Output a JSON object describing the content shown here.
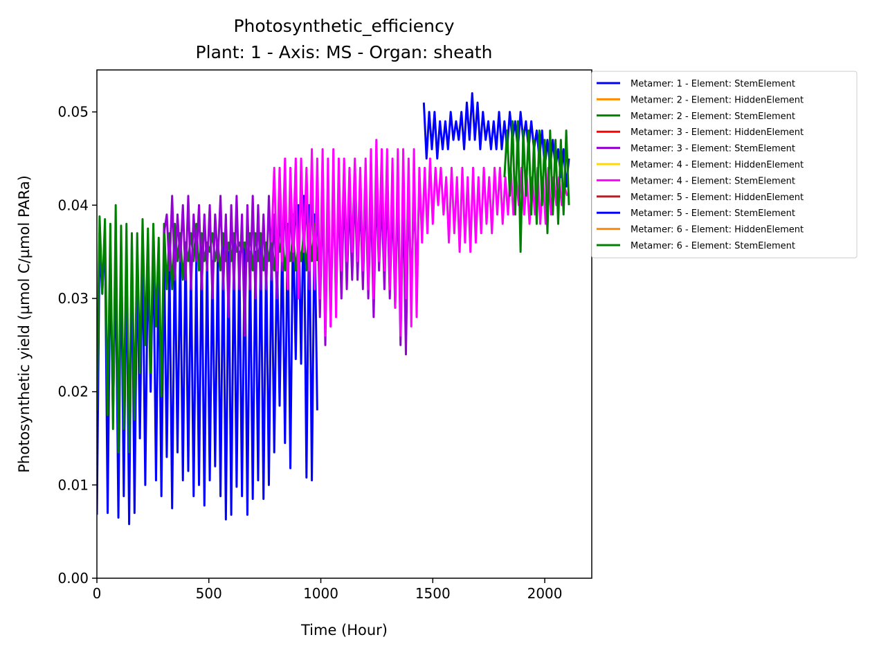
{
  "chart_data": {
    "type": "line",
    "title": "Photosynthetic_efficiency",
    "subtitle": "Plant: 1 - Axis: MS - Organ: sheath",
    "xlabel": "Time (Hour)",
    "ylabel": "Photosynthetic yield (µmol C/µmol PARa)",
    "xlim": [
      0,
      2210
    ],
    "ylim": [
      0,
      0.0545
    ],
    "xticks": [
      0,
      500,
      1000,
      1500,
      2000
    ],
    "xtick_labels": [
      "0",
      "500",
      "1000",
      "1500",
      "2000"
    ],
    "yticks": [
      0,
      0.01,
      0.02,
      0.03,
      0.04,
      0.05
    ],
    "ytick_labels": [
      "0.00",
      "0.01",
      "0.02",
      "0.03",
      "0.04",
      "0.05"
    ],
    "grid": false,
    "legend_position": "outside-right-top",
    "series": [
      {
        "name": "Metamer: 1 - Element: StemElement",
        "color": "#0000ff",
        "x": [
          0,
          12,
          24,
          36,
          48,
          60,
          72,
          84,
          96,
          108,
          120,
          132,
          144,
          156,
          168,
          180,
          192,
          204,
          216,
          228,
          240,
          252,
          264,
          276,
          288,
          300,
          312,
          324,
          336,
          348,
          360,
          372,
          384,
          396,
          408,
          420,
          432,
          444,
          456,
          468,
          480,
          492,
          504,
          516,
          528,
          540,
          552,
          564,
          576,
          588,
          600,
          612,
          624,
          636,
          648,
          660,
          672,
          684,
          696,
          708,
          720,
          732,
          744,
          756,
          768,
          780,
          792,
          804,
          816,
          828,
          840,
          852,
          864,
          876,
          888,
          900,
          912,
          924,
          936,
          948,
          960,
          972,
          984
        ],
        "y": [
          0.0068,
          0.036,
          0.0305,
          0.037,
          0.007,
          0.035,
          0.017,
          0.034,
          0.0065,
          0.036,
          0.0088,
          0.035,
          0.0058,
          0.036,
          0.007,
          0.035,
          0.015,
          0.036,
          0.01,
          0.035,
          0.02,
          0.036,
          0.0105,
          0.035,
          0.0088,
          0.035,
          0.013,
          0.034,
          0.0075,
          0.036,
          0.0135,
          0.035,
          0.0105,
          0.036,
          0.0115,
          0.034,
          0.0088,
          0.034,
          0.01,
          0.036,
          0.0078,
          0.035,
          0.0105,
          0.034,
          0.012,
          0.035,
          0.0088,
          0.036,
          0.0063,
          0.035,
          0.0068,
          0.036,
          0.0098,
          0.035,
          0.0088,
          0.036,
          0.0068,
          0.035,
          0.0085,
          0.035,
          0.0105,
          0.036,
          0.0085,
          0.035,
          0.01,
          0.036,
          0.0135,
          0.035,
          0.0185,
          0.037,
          0.0145,
          0.038,
          0.0118,
          0.039,
          0.0235,
          0.04,
          0.023,
          0.041,
          0.0108,
          0.04,
          0.0105,
          0.039,
          0.018
        ]
      },
      {
        "name": "Metamer: 2 - Element: HiddenElement",
        "color": "#ff8c00",
        "x": [],
        "y": []
      },
      {
        "name": "Metamer: 2 - Element: StemElement",
        "color": "#008000",
        "x": [
          0,
          12,
          24,
          36,
          48,
          60,
          72,
          84,
          96,
          108,
          120,
          132,
          144,
          156,
          168,
          180,
          192,
          204,
          216,
          228,
          240,
          252,
          264,
          276,
          288,
          300,
          312,
          324,
          336,
          348,
          360,
          372,
          384,
          396,
          408,
          420,
          432,
          444,
          456,
          468,
          480,
          492,
          504,
          516,
          528,
          540,
          552,
          564,
          576,
          588,
          600,
          612,
          624,
          636,
          648,
          660,
          672,
          684,
          696,
          708,
          720,
          732,
          744,
          756,
          768,
          780,
          792,
          804,
          816,
          828,
          840,
          852,
          864,
          876,
          888,
          900,
          912,
          924,
          936,
          948,
          960,
          972,
          984
        ],
        "y": [
          0.018,
          0.0388,
          0.0305,
          0.0385,
          0.0175,
          0.038,
          0.016,
          0.04,
          0.0135,
          0.0378,
          0.016,
          0.038,
          0.0135,
          0.037,
          0.017,
          0.037,
          0.022,
          0.0385,
          0.025,
          0.0375,
          0.022,
          0.038,
          0.027,
          0.0365,
          0.0195,
          0.038,
          0.031,
          0.037,
          0.031,
          0.038,
          0.034,
          0.037,
          0.032,
          0.036,
          0.034,
          0.037,
          0.034,
          0.038,
          0.033,
          0.037,
          0.034,
          0.036,
          0.035,
          0.037,
          0.034,
          0.036,
          0.033,
          0.037,
          0.034,
          0.036,
          0.034,
          0.037,
          0.035,
          0.036,
          0.035,
          0.036,
          0.034,
          0.037,
          0.033,
          0.037,
          0.034,
          0.037,
          0.033,
          0.036,
          0.034,
          0.037,
          0.033,
          0.036,
          0.035,
          0.037,
          0.033,
          0.036,
          0.034,
          0.037,
          0.033,
          0.036,
          0.034,
          0.037,
          0.033,
          0.038,
          0.034,
          0.038,
          0.034
        ]
      },
      {
        "name": "Metamer: 3 - Element: HiddenElement",
        "color": "#ff0000",
        "x": [],
        "y": []
      },
      {
        "name": "Metamer: 3 - Element: StemElement",
        "color": "#9400d3",
        "x": [
          300,
          312,
          324,
          336,
          348,
          360,
          372,
          384,
          396,
          408,
          420,
          432,
          444,
          456,
          468,
          480,
          492,
          504,
          516,
          528,
          540,
          552,
          564,
          576,
          588,
          600,
          612,
          624,
          636,
          648,
          660,
          672,
          684,
          696,
          708,
          720,
          732,
          744,
          756,
          768,
          780,
          792,
          804,
          816,
          828,
          840,
          852,
          864,
          876,
          888,
          900,
          912,
          924,
          936,
          948,
          960,
          972,
          984,
          996,
          1008,
          1020,
          1032,
          1044,
          1056,
          1068,
          1080,
          1092,
          1104,
          1116,
          1128,
          1140,
          1152,
          1164,
          1176,
          1188,
          1200,
          1212,
          1224,
          1236,
          1248,
          1260,
          1272,
          1284,
          1296,
          1308,
          1320,
          1332,
          1344,
          1356,
          1368,
          1380,
          1392,
          1404,
          1416,
          1428,
          1440
        ],
        "y": [
          0.037,
          0.039,
          0.033,
          0.041,
          0.032,
          0.039,
          0.034,
          0.04,
          0.032,
          0.041,
          0.031,
          0.039,
          0.034,
          0.04,
          0.031,
          0.039,
          0.033,
          0.04,
          0.03,
          0.039,
          0.034,
          0.041,
          0.031,
          0.039,
          0.028,
          0.04,
          0.031,
          0.041,
          0.031,
          0.039,
          0.026,
          0.04,
          0.031,
          0.041,
          0.03,
          0.04,
          0.031,
          0.039,
          0.031,
          0.041,
          0.032,
          0.039,
          0.03,
          0.04,
          0.033,
          0.041,
          0.031,
          0.04,
          0.034,
          0.04,
          0.035,
          0.042,
          0.035,
          0.041,
          0.031,
          0.042,
          0.032,
          0.041,
          0.028,
          0.042,
          0.025,
          0.041,
          0.027,
          0.042,
          0.03,
          0.041,
          0.03,
          0.042,
          0.031,
          0.041,
          0.032,
          0.042,
          0.032,
          0.041,
          0.031,
          0.042,
          0.03,
          0.041,
          0.028,
          0.042,
          0.033,
          0.041,
          0.031,
          0.042,
          0.03,
          0.041,
          0.029,
          0.042,
          0.025,
          0.041,
          0.024,
          0.042,
          0.031,
          0.041,
          0.032,
          0.042
        ]
      },
      {
        "name": "Metamer: 4 - Element: HiddenElement",
        "color": "#ffd700",
        "x": [],
        "y": []
      },
      {
        "name": "Metamer: 4 - Element: StemElement",
        "color": "#ff00ff",
        "x": [
          780,
          792,
          804,
          816,
          828,
          840,
          852,
          864,
          876,
          888,
          900,
          912,
          924,
          936,
          948,
          960,
          972,
          984,
          996,
          1008,
          1020,
          1032,
          1044,
          1056,
          1068,
          1080,
          1092,
          1104,
          1116,
          1128,
          1140,
          1152,
          1164,
          1176,
          1188,
          1200,
          1212,
          1224,
          1236,
          1248,
          1260,
          1272,
          1284,
          1296,
          1308,
          1320,
          1332,
          1344,
          1356,
          1368,
          1380,
          1392,
          1404,
          1416,
          1428,
          1440,
          1452,
          1464,
          1476,
          1488,
          1500,
          1512,
          1524,
          1536,
          1548,
          1560,
          1572,
          1584,
          1596,
          1608,
          1620,
          1632,
          1644,
          1656,
          1668,
          1680,
          1692,
          1704,
          1716,
          1728,
          1740,
          1752,
          1764,
          1776,
          1788,
          1800,
          1812,
          1824,
          1836,
          1848,
          1860,
          1872,
          1884,
          1896,
          1908,
          1920,
          1932,
          1944,
          1956,
          1968,
          1980,
          1992,
          2004,
          2016,
          2028,
          2040,
          2052,
          2064,
          2076,
          2088,
          2100
        ],
        "y": [
          0.036,
          0.044,
          0.033,
          0.044,
          0.034,
          0.045,
          0.031,
          0.044,
          0.035,
          0.045,
          0.03,
          0.045,
          0.035,
          0.044,
          0.033,
          0.046,
          0.031,
          0.045,
          0.03,
          0.046,
          0.026,
          0.045,
          0.027,
          0.046,
          0.028,
          0.045,
          0.033,
          0.045,
          0.034,
          0.044,
          0.035,
          0.045,
          0.034,
          0.044,
          0.033,
          0.045,
          0.031,
          0.046,
          0.03,
          0.047,
          0.034,
          0.046,
          0.033,
          0.046,
          0.031,
          0.045,
          0.029,
          0.046,
          0.026,
          0.046,
          0.03,
          0.045,
          0.027,
          0.046,
          0.028,
          0.044,
          0.036,
          0.044,
          0.037,
          0.045,
          0.038,
          0.044,
          0.04,
          0.044,
          0.039,
          0.043,
          0.036,
          0.044,
          0.037,
          0.043,
          0.035,
          0.044,
          0.036,
          0.043,
          0.035,
          0.044,
          0.036,
          0.043,
          0.037,
          0.044,
          0.038,
          0.043,
          0.037,
          0.044,
          0.039,
          0.044,
          0.038,
          0.043,
          0.039,
          0.044,
          0.039,
          0.043,
          0.04,
          0.044,
          0.039,
          0.043,
          0.038,
          0.043,
          0.039,
          0.044,
          0.038,
          0.043,
          0.038,
          0.044,
          0.039,
          0.043,
          0.04,
          0.043,
          0.04,
          0.042,
          0.041
        ]
      },
      {
        "name": "Metamer: 5 - Element: HiddenElement",
        "color": "#b22222",
        "x": [],
        "y": []
      },
      {
        "name": "Metamer: 5 - Element: StemElement",
        "color": "#0000ff",
        "x": [
          1460,
          1472,
          1484,
          1496,
          1508,
          1520,
          1532,
          1544,
          1556,
          1568,
          1580,
          1592,
          1604,
          1616,
          1628,
          1640,
          1652,
          1664,
          1676,
          1688,
          1700,
          1712,
          1724,
          1736,
          1748,
          1760,
          1772,
          1784,
          1796,
          1808,
          1820,
          1832,
          1844,
          1856,
          1868,
          1880,
          1892,
          1904,
          1916,
          1928,
          1940,
          1952,
          1964,
          1976,
          1988,
          2000,
          2012,
          2024,
          2036,
          2048,
          2060,
          2072,
          2084,
          2096,
          2108
        ],
        "y": [
          0.051,
          0.045,
          0.05,
          0.046,
          0.05,
          0.045,
          0.049,
          0.046,
          0.049,
          0.046,
          0.05,
          0.047,
          0.049,
          0.047,
          0.05,
          0.046,
          0.051,
          0.047,
          0.052,
          0.047,
          0.051,
          0.046,
          0.05,
          0.047,
          0.049,
          0.046,
          0.049,
          0.046,
          0.05,
          0.046,
          0.049,
          0.046,
          0.05,
          0.047,
          0.049,
          0.046,
          0.05,
          0.047,
          0.049,
          0.046,
          0.049,
          0.046,
          0.048,
          0.045,
          0.048,
          0.044,
          0.047,
          0.044,
          0.047,
          0.044,
          0.046,
          0.043,
          0.046,
          0.042,
          0.045
        ]
      },
      {
        "name": "Metamer: 6 - Element: HiddenElement",
        "color": "#ff8c00",
        "x": [],
        "y": []
      },
      {
        "name": "Metamer: 6 - Element: StemElement",
        "color": "#008000",
        "x": [
          1820,
          1832,
          1844,
          1856,
          1868,
          1880,
          1892,
          1904,
          1916,
          1928,
          1940,
          1952,
          1964,
          1976,
          1988,
          2000,
          2012,
          2024,
          2036,
          2048,
          2060,
          2072,
          2084,
          2096,
          2108
        ],
        "y": [
          0.043,
          0.048,
          0.041,
          0.049,
          0.039,
          0.049,
          0.035,
          0.048,
          0.041,
          0.048,
          0.039,
          0.047,
          0.038,
          0.048,
          0.04,
          0.047,
          0.037,
          0.048,
          0.039,
          0.047,
          0.038,
          0.047,
          0.039,
          0.048,
          0.04
        ]
      }
    ]
  }
}
